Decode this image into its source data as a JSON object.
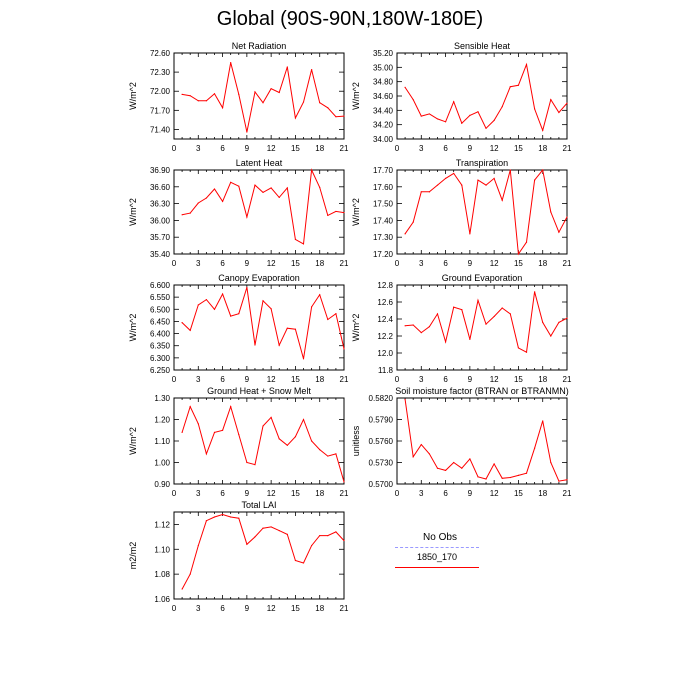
{
  "title": "Global (90S-90N,180W-180E)",
  "colors": {
    "model": "#ff0000",
    "obs": "#9999ff",
    "axis": "#000000"
  },
  "legend": {
    "entries": [
      {
        "label": "No Obs",
        "color": "#9999ff",
        "dash": true
      },
      {
        "label": "1850_170",
        "color": "#ff0000",
        "dash": false
      }
    ]
  },
  "chart_data": [
    {
      "type": "line",
      "title": "Net Radiation",
      "ylabel": "W/m^2",
      "ylim": [
        71.25,
        72.6
      ],
      "yticks": [
        "72.60",
        "72.30",
        "72.00",
        "71.70",
        "71.40"
      ],
      "xlim": [
        0,
        21
      ],
      "xticks": [
        "0",
        "3",
        "6",
        "9",
        "12",
        "15",
        "18",
        "21"
      ],
      "series": [
        {
          "x": [
            1,
            2,
            3,
            4,
            5,
            6,
            7,
            8,
            9,
            10,
            11,
            12,
            13,
            14,
            15,
            16,
            17,
            18,
            19,
            20,
            21
          ],
          "values": [
            71.95,
            71.93,
            71.85,
            71.85,
            71.96,
            71.74,
            72.45,
            71.95,
            71.36,
            71.99,
            71.82,
            72.04,
            71.98,
            72.38,
            71.58,
            71.83,
            72.34,
            71.82,
            71.74,
            71.6,
            71.61
          ]
        }
      ]
    },
    {
      "type": "line",
      "title": "Sensible Heat",
      "ylabel": "W/m^2",
      "ylim": [
        34.0,
        35.2
      ],
      "yticks": [
        "35.20",
        "35.00",
        "34.80",
        "34.60",
        "34.40",
        "34.20",
        "34.00"
      ],
      "xlim": [
        0,
        21
      ],
      "xticks": [
        "0",
        "3",
        "6",
        "9",
        "12",
        "15",
        "18",
        "21"
      ],
      "series": [
        {
          "x": [
            1,
            2,
            3,
            4,
            5,
            6,
            7,
            8,
            9,
            10,
            11,
            12,
            13,
            14,
            15,
            16,
            17,
            18,
            19,
            20,
            21
          ],
          "values": [
            34.72,
            34.55,
            34.32,
            34.35,
            34.28,
            34.24,
            34.52,
            34.22,
            34.33,
            34.38,
            34.15,
            34.26,
            34.45,
            34.73,
            34.75,
            35.04,
            34.42,
            34.12,
            34.55,
            34.37,
            34.5
          ]
        }
      ]
    },
    {
      "type": "line",
      "title": "Latent Heat",
      "ylabel": "W/m^2",
      "ylim": [
        35.4,
        36.9
      ],
      "yticks": [
        "36.90",
        "36.60",
        "36.30",
        "36.00",
        "35.70",
        "35.40"
      ],
      "xlim": [
        0,
        21
      ],
      "xticks": [
        "0",
        "3",
        "6",
        "9",
        "12",
        "15",
        "18",
        "21"
      ],
      "series": [
        {
          "x": [
            1,
            2,
            3,
            4,
            5,
            6,
            7,
            8,
            9,
            10,
            11,
            12,
            13,
            14,
            15,
            16,
            17,
            18,
            19,
            20,
            21
          ],
          "values": [
            36.1,
            36.13,
            36.31,
            36.4,
            36.56,
            36.34,
            36.68,
            36.61,
            36.06,
            36.63,
            36.5,
            36.58,
            36.41,
            36.58,
            35.66,
            35.58,
            36.9,
            36.59,
            36.09,
            36.16,
            36.14
          ]
        }
      ]
    },
    {
      "type": "line",
      "title": "Transpiration",
      "ylabel": "W/m^2",
      "ylim": [
        17.2,
        17.7
      ],
      "yticks": [
        "17.70",
        "17.60",
        "17.50",
        "17.40",
        "17.30",
        "17.20"
      ],
      "xlim": [
        0,
        21
      ],
      "xticks": [
        "0",
        "3",
        "6",
        "9",
        "12",
        "15",
        "18",
        "21"
      ],
      "series": [
        {
          "x": [
            1,
            2,
            3,
            4,
            5,
            6,
            7,
            8,
            9,
            10,
            11,
            12,
            13,
            14,
            15,
            16,
            17,
            18,
            19,
            20,
            21
          ],
          "values": [
            17.32,
            17.39,
            17.57,
            17.57,
            17.61,
            17.65,
            17.68,
            17.61,
            17.32,
            17.64,
            17.61,
            17.65,
            17.52,
            17.7,
            17.2,
            17.27,
            17.64,
            17.7,
            17.45,
            17.33,
            17.42
          ]
        }
      ]
    },
    {
      "type": "line",
      "title": "Canopy Evaporation",
      "ylabel": "W/m^2",
      "ylim": [
        6.25,
        6.6
      ],
      "yticks": [
        "6.600",
        "6.550",
        "6.500",
        "6.450",
        "6.400",
        "6.350",
        "6.300",
        "6.250"
      ],
      "xlim": [
        0,
        21
      ],
      "xticks": [
        "0",
        "3",
        "6",
        "9",
        "12",
        "15",
        "18",
        "21"
      ],
      "series": [
        {
          "x": [
            1,
            2,
            3,
            4,
            5,
            6,
            7,
            8,
            9,
            10,
            11,
            12,
            13,
            14,
            15,
            16,
            17,
            18,
            19,
            20,
            21
          ],
          "values": [
            6.445,
            6.413,
            6.518,
            6.54,
            6.5,
            6.563,
            6.472,
            6.482,
            6.59,
            6.353,
            6.535,
            6.502,
            6.352,
            6.422,
            6.418,
            6.296,
            6.51,
            6.56,
            6.458,
            6.482,
            6.337
          ]
        }
      ]
    },
    {
      "type": "line",
      "title": "Ground Evaporation",
      "ylabel": "W/m^2",
      "ylim": [
        11.8,
        12.8
      ],
      "yticks": [
        "12.8",
        "12.6",
        "12.4",
        "12.2",
        "12.0",
        "11.8"
      ],
      "xlim": [
        0,
        21
      ],
      "xticks": [
        "0",
        "3",
        "6",
        "9",
        "12",
        "15",
        "18",
        "21"
      ],
      "series": [
        {
          "x": [
            1,
            2,
            3,
            4,
            5,
            6,
            7,
            8,
            9,
            10,
            11,
            12,
            13,
            14,
            15,
            16,
            17,
            18,
            19,
            20,
            21
          ],
          "values": [
            12.32,
            12.33,
            12.24,
            12.31,
            12.46,
            12.13,
            12.54,
            12.51,
            12.16,
            12.62,
            12.34,
            12.43,
            12.53,
            12.46,
            12.06,
            12.01,
            12.72,
            12.36,
            12.2,
            12.36,
            12.41
          ]
        }
      ]
    },
    {
      "type": "line",
      "title": "Ground Heat + Snow Melt",
      "ylabel": "W/m^2",
      "ylim": [
        0.9,
        1.3
      ],
      "yticks": [
        "1.30",
        "1.20",
        "1.10",
        "1.00",
        "0.90"
      ],
      "xlim": [
        0,
        21
      ],
      "xticks": [
        "0",
        "3",
        "6",
        "9",
        "12",
        "15",
        "18",
        "21"
      ],
      "series": [
        {
          "x": [
            1,
            2,
            3,
            4,
            5,
            6,
            7,
            8,
            9,
            10,
            11,
            12,
            13,
            14,
            15,
            16,
            17,
            18,
            19,
            20,
            21
          ],
          "values": [
            1.14,
            1.26,
            1.18,
            1.04,
            1.14,
            1.15,
            1.26,
            1.13,
            1.0,
            0.99,
            1.17,
            1.21,
            1.11,
            1.08,
            1.12,
            1.2,
            1.1,
            1.06,
            1.03,
            1.04,
            0.91
          ]
        }
      ]
    },
    {
      "type": "line",
      "title": "Soil moisture factor (BTRAN or BTRANMN)",
      "ylabel": "unitless",
      "ylim": [
        0.57,
        0.582
      ],
      "yticks": [
        "0.5820",
        "0.5790",
        "0.5760",
        "0.5730",
        "0.5700"
      ],
      "xlim": [
        0,
        21
      ],
      "xticks": [
        "0",
        "3",
        "6",
        "9",
        "12",
        "15",
        "18",
        "21"
      ],
      "series": [
        {
          "x": [
            1,
            2,
            3,
            4,
            5,
            6,
            7,
            8,
            9,
            10,
            11,
            12,
            13,
            14,
            15,
            16,
            17,
            18,
            19,
            20,
            21
          ],
          "values": [
            0.5818,
            0.5738,
            0.5755,
            0.5742,
            0.5722,
            0.5719,
            0.573,
            0.5722,
            0.5735,
            0.571,
            0.5707,
            0.5728,
            0.5708,
            0.5709,
            0.5712,
            0.5715,
            0.575,
            0.5788,
            0.573,
            0.5704,
            0.5706
          ]
        }
      ]
    },
    {
      "type": "line",
      "title": "Total LAI",
      "ylabel": "m2/m2",
      "ylim": [
        1.06,
        1.13
      ],
      "yticks": [
        "1.12",
        "1.10",
        "1.08",
        "1.06"
      ],
      "xlim": [
        0,
        21
      ],
      "xticks": [
        "0",
        "3",
        "6",
        "9",
        "12",
        "15",
        "18",
        "21"
      ],
      "series": [
        {
          "x": [
            1,
            2,
            3,
            4,
            5,
            6,
            7,
            8,
            9,
            10,
            11,
            12,
            13,
            14,
            15,
            16,
            17,
            18,
            19,
            20,
            21
          ],
          "values": [
            1.068,
            1.08,
            1.103,
            1.123,
            1.126,
            1.128,
            1.126,
            1.125,
            1.104,
            1.11,
            1.117,
            1.118,
            1.115,
            1.112,
            1.091,
            1.089,
            1.103,
            1.111,
            1.111,
            1.114,
            1.107
          ]
        }
      ]
    }
  ]
}
